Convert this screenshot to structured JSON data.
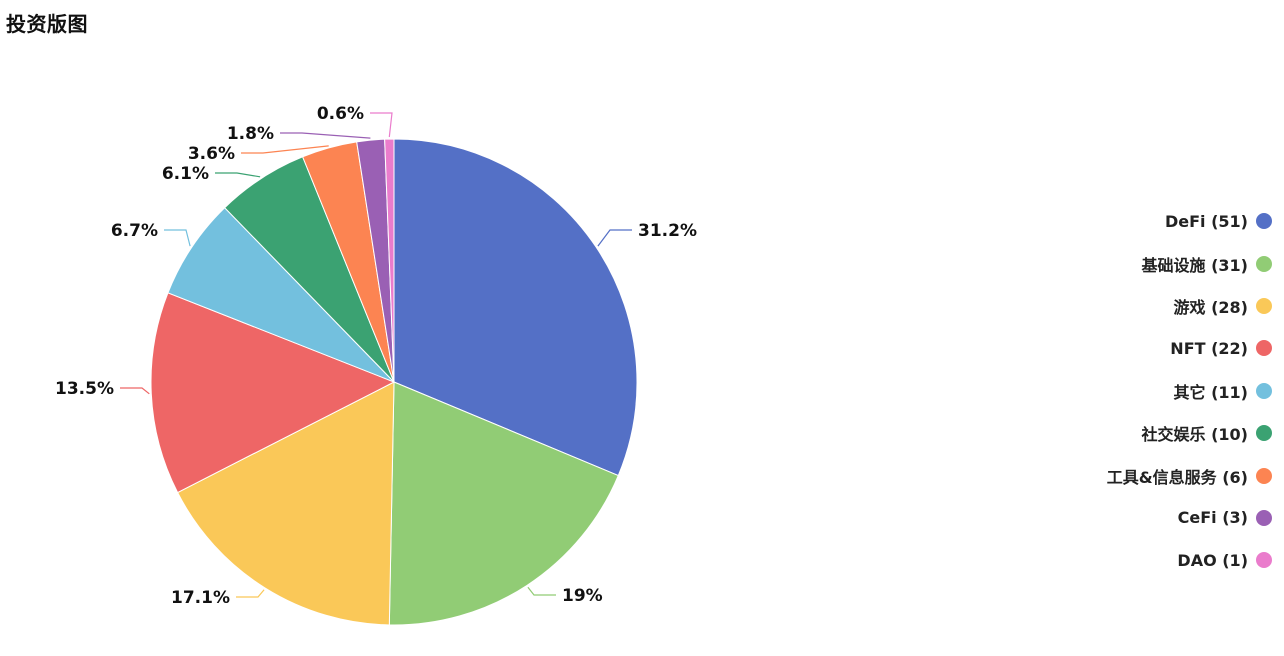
{
  "page_title": "投资版图",
  "chart_data": {
    "type": "pie",
    "title": "投资版图",
    "slices": [
      {
        "name": "DeFi",
        "count": 51,
        "percent": "31.2%",
        "color": "#5470c6"
      },
      {
        "name": "基础设施",
        "count": 31,
        "percent": "19%",
        "color": "#91cc75"
      },
      {
        "name": "游戏",
        "count": 28,
        "percent": "17.1%",
        "color": "#fac858"
      },
      {
        "name": "NFT",
        "count": 22,
        "percent": "13.5%",
        "color": "#ee6666"
      },
      {
        "name": "其它",
        "count": 11,
        "percent": "6.7%",
        "color": "#73c0de"
      },
      {
        "name": "社交娱乐",
        "count": 10,
        "percent": "6.1%",
        "color": "#3ba272"
      },
      {
        "name": "工具&信息服务",
        "count": 6,
        "percent": "3.6%",
        "color": "#fc8452"
      },
      {
        "name": "CeFi",
        "count": 3,
        "percent": "1.8%",
        "color": "#9a60b4"
      },
      {
        "name": "DAO",
        "count": 1,
        "percent": "0.6%",
        "color": "#ea7ccc"
      }
    ],
    "legend_position": "right",
    "legend_items": [
      "DeFi (51)",
      "基础设施 (31)",
      "游戏 (28)",
      "NFT (22)",
      "其它 (11)",
      "社交娱乐 (10)",
      "工具&信息服务 (6)",
      "CeFi (3)",
      "DAO (1)"
    ]
  }
}
